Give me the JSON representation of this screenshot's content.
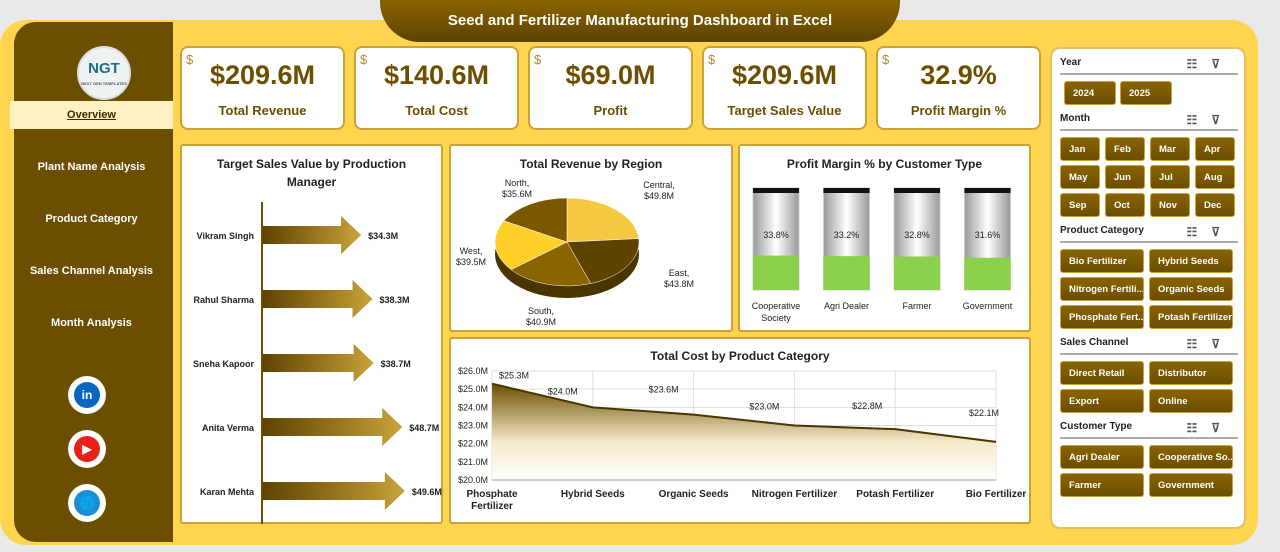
{
  "title": "Seed and Fertilizer Manufacturing Dashboard in Excel",
  "logo": {
    "text": "NGT",
    "subtext": "NEXT GEN TEMPLATES"
  },
  "sidebar": {
    "items": [
      {
        "label": "Overview",
        "active": true
      },
      {
        "label": "Plant Name Analysis"
      },
      {
        "label": "Product Category"
      },
      {
        "label": "Sales Channel Analysis"
      },
      {
        "label": "Month Analysis"
      }
    ],
    "social": [
      {
        "icon": "linkedin-icon",
        "text": "in",
        "color": "#0A66C2"
      },
      {
        "icon": "youtube-icon",
        "text": "▶",
        "color": "#E62117"
      },
      {
        "icon": "globe-icon",
        "text": "🌐",
        "color": "#1a8fd6"
      }
    ]
  },
  "kpis": [
    {
      "value": "$209.6M",
      "label": "Total Revenue",
      "icon": "money-bag-icon"
    },
    {
      "value": "$140.6M",
      "label": "Total Cost",
      "icon": "cash-icon"
    },
    {
      "value": "$69.0M",
      "label": "Profit",
      "icon": "profit-icon"
    },
    {
      "value": "$209.6M",
      "label": "Target Sales Value",
      "icon": "target-money-icon"
    },
    {
      "value": "32.9%",
      "label": "Profit Margin %",
      "icon": "coins-icon"
    }
  ],
  "colors": {
    "brand": "#6B4E00",
    "background": "#FFD54F",
    "green": "#8BD14C"
  },
  "chart_data": [
    {
      "type": "bar",
      "orientation": "horizontal",
      "title": "Target Sales Value by Production Manager",
      "categories": [
        "Vikram Singh",
        "Rahul Sharma",
        "Sneha Kapoor",
        "Anita Verma",
        "Karan Mehta"
      ],
      "values": [
        34.3,
        38.3,
        38.7,
        48.7,
        49.6
      ],
      "labels": [
        "$34.3M",
        "$38.3M",
        "$38.7M",
        "$48.7M",
        "$49.6M"
      ]
    },
    {
      "type": "pie",
      "title": "Total Revenue by Region",
      "categories": [
        "Central",
        "East",
        "South",
        "West",
        "North"
      ],
      "values": [
        49.8,
        43.8,
        40.9,
        39.5,
        35.6
      ],
      "labels": [
        "$49.8M",
        "$43.8M",
        "$40.9M",
        "$39.5M",
        "$35.6M"
      ],
      "colors": [
        "#F5C842",
        "#5E4300",
        "#8A6400",
        "#FFD02A",
        "#7A5800"
      ]
    },
    {
      "type": "bar",
      "title": "Profit Margin % by Customer Type",
      "categories": [
        "Cooperative Society",
        "Agri Dealer",
        "Farmer",
        "Government"
      ],
      "values": [
        33.8,
        33.2,
        32.8,
        31.6
      ],
      "labels": [
        "33.8%",
        "33.2%",
        "32.8%",
        "31.6%"
      ],
      "ylim": [
        0,
        100
      ]
    },
    {
      "type": "area",
      "title": "Total Cost by Product Category",
      "categories": [
        "Phosphate Fertilizer",
        "Hybrid Seeds",
        "Organic Seeds",
        "Nitrogen Fertilizer",
        "Potash Fertilizer",
        "Bio Fertilizer"
      ],
      "values": [
        25.3,
        24.0,
        23.6,
        23.0,
        22.8,
        22.1
      ],
      "labels": [
        "$25.3M",
        "$24.0M",
        "$23.6M",
        "$23.0M",
        "$22.8M",
        "$22.1M"
      ],
      "ylim": [
        20,
        26
      ],
      "yticks": [
        "$20.0M",
        "$21.0M",
        "$22.0M",
        "$23.0M",
        "$24.0M",
        "$25.0M",
        "$26.0M"
      ],
      "grid": true
    }
  ],
  "slicers": [
    {
      "title": "Year",
      "items": [
        "2024",
        "2025"
      ]
    },
    {
      "title": "Month",
      "items": [
        "Jan",
        "Feb",
        "Mar",
        "Apr",
        "May",
        "Jun",
        "Jul",
        "Aug",
        "Sep",
        "Oct",
        "Nov",
        "Dec"
      ]
    },
    {
      "title": "Product Category",
      "items": [
        "Bio Fertilizer",
        "Hybrid Seeds",
        "Nitrogen Fertili...",
        "Organic Seeds",
        "Phosphate Fert...",
        "Potash Fertilizer"
      ]
    },
    {
      "title": "Sales Channel",
      "items": [
        "Direct Retail",
        "Distributor",
        "Export",
        "Online"
      ]
    },
    {
      "title": "Customer Type",
      "items": [
        "Agri Dealer",
        "Cooperative So...",
        "Farmer",
        "Government"
      ]
    }
  ]
}
